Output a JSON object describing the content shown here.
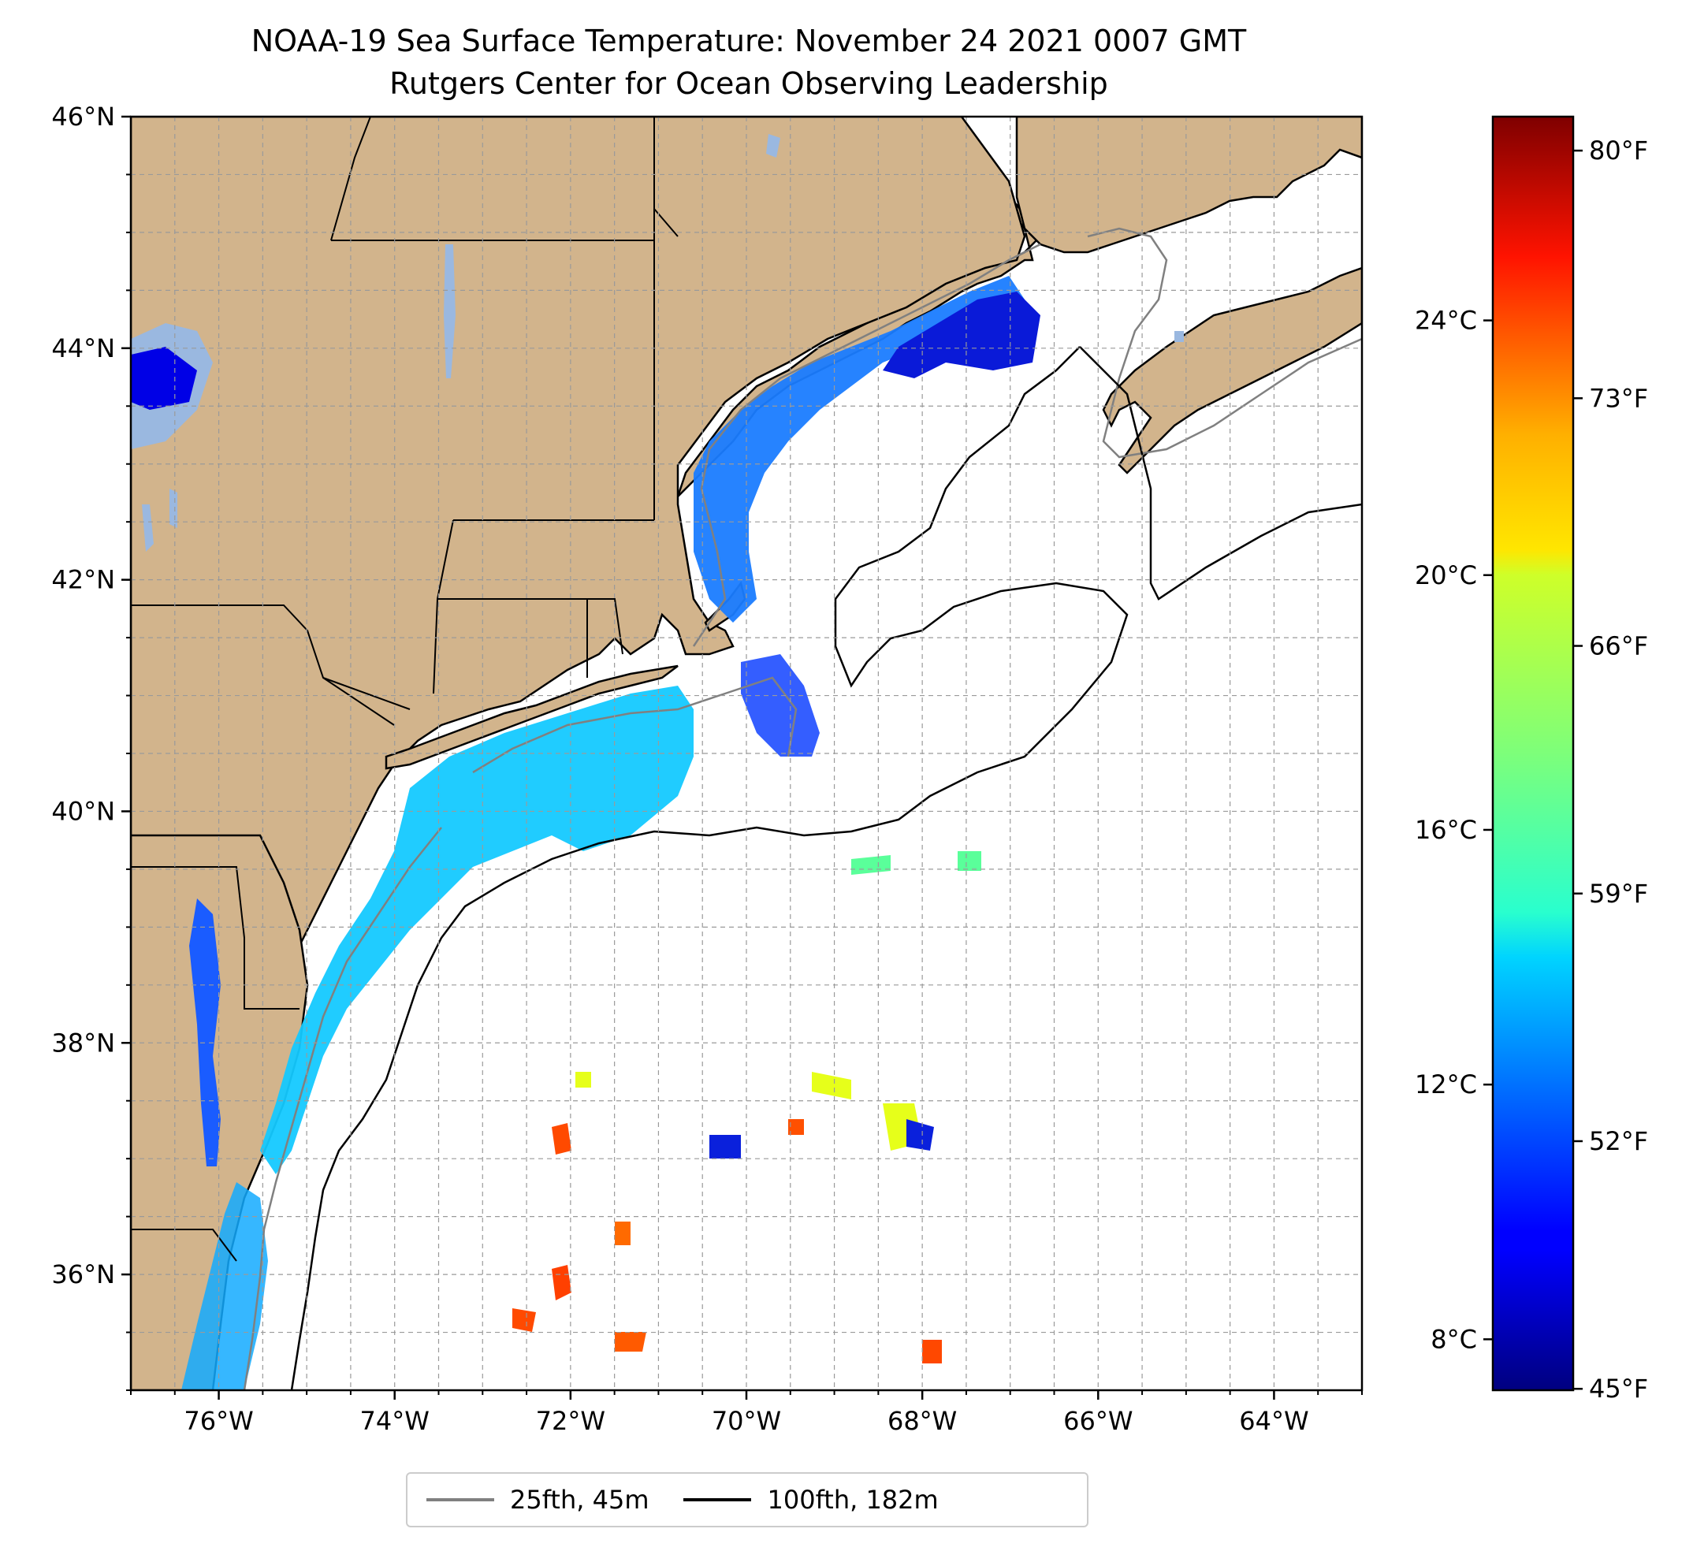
{
  "title": "NOAA-19 Sea Surface Temperature: November 24 2021 0007 GMT",
  "subtitle": "Rutgers Center for Ocean Observing Leadership",
  "map": {
    "lon_range": [
      -77,
      -63
    ],
    "lat_range": [
      35,
      46
    ],
    "lon_ticks": [
      {
        "value": -76,
        "label": "76°W"
      },
      {
        "value": -74,
        "label": "74°W"
      },
      {
        "value": -72,
        "label": "72°W"
      },
      {
        "value": -70,
        "label": "70°W"
      },
      {
        "value": -68,
        "label": "68°W"
      },
      {
        "value": -66,
        "label": "66°W"
      },
      {
        "value": -64,
        "label": "64°W"
      }
    ],
    "lat_ticks": [
      {
        "value": 46,
        "label": "46°N"
      },
      {
        "value": 44,
        "label": "44°N"
      },
      {
        "value": 42,
        "label": "42°N"
      },
      {
        "value": 40,
        "label": "40°N"
      },
      {
        "value": 38,
        "label": "38°N"
      },
      {
        "value": 36,
        "label": "36°N"
      }
    ],
    "gridlines": true,
    "land_color": "#d2b48c",
    "lake_color": "#9ab8e0",
    "ocean_color": "#ffffff"
  },
  "colorbar": {
    "colormap": "jet",
    "range_c": [
      7.2,
      27.2
    ],
    "celsius_ticks": [
      {
        "value": 8,
        "label": "8°C"
      },
      {
        "value": 12,
        "label": "12°C"
      },
      {
        "value": 16,
        "label": "16°C"
      },
      {
        "value": 20,
        "label": "20°C"
      },
      {
        "value": 24,
        "label": "24°C"
      }
    ],
    "fahrenheit_ticks": [
      {
        "value": 45,
        "label": "45°F"
      },
      {
        "value": 52,
        "label": "52°F"
      },
      {
        "value": 59,
        "label": "59°F"
      },
      {
        "value": 66,
        "label": "66°F"
      },
      {
        "value": 73,
        "label": "73°F"
      },
      {
        "value": 80,
        "label": "80°F"
      }
    ]
  },
  "legend": {
    "placement": "bottom-center",
    "items": [
      {
        "label": "25fth, 45m",
        "color": "#808080"
      },
      {
        "label": "100fth, 182m",
        "color": "#000000"
      }
    ]
  }
}
